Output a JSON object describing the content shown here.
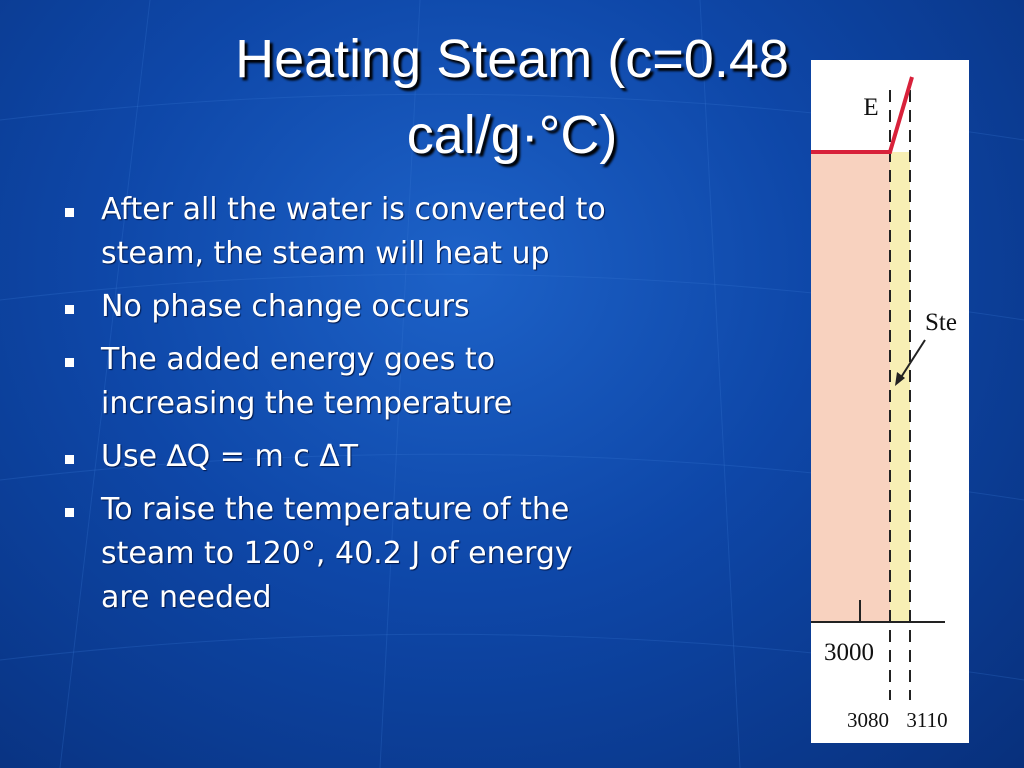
{
  "title": {
    "lines": [
      "Heating Steam (c=0.48",
      "cal/g·°C)"
    ]
  },
  "bullets": [
    "After all the water is converted to steam, the steam will heat up",
    "No phase change occurs",
    "The added energy goes to increasing the temperature",
    "Use ∆Q = m c ΔT",
    "To raise the temperature of the steam to 120°, 40.2 J of energy are needed"
  ],
  "figure": {
    "region_label": "E",
    "arrow_label": "Ste",
    "axis_labels": [
      3000,
      3080,
      3110
    ]
  }
}
